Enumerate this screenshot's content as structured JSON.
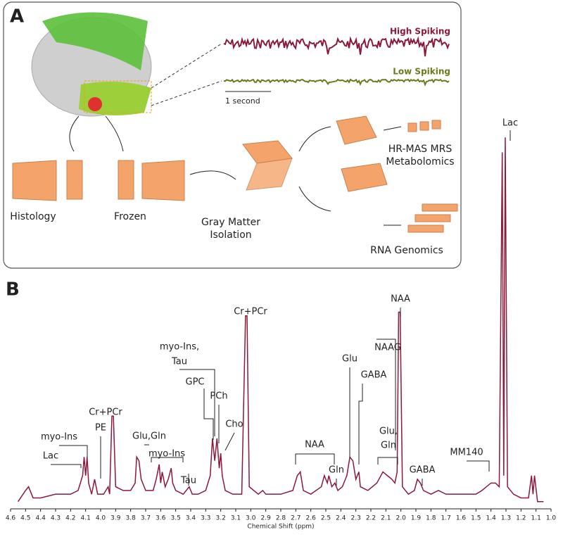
{
  "panel_a": {
    "label": "A",
    "high": "High Spiking",
    "low": "Low Spiking",
    "scale": "1 second",
    "histology": "Histology",
    "frozen": "Frozen",
    "gray": [
      "Gray Matter",
      "Isolation"
    ],
    "mrs": [
      "HR-MAS MRS",
      "Metabolomics"
    ],
    "rna": "RNA Genomics"
  },
  "chart_data": {
    "type": "line",
    "panel_label": "B",
    "x_label": "Chemical Shift (ppm)",
    "xlim": [
      4.6,
      1.0
    ],
    "xticks": [
      4.6,
      4.5,
      4.4,
      4.3,
      4.2,
      4.1,
      {
        "value": 4,
        "label": "4.0"
      },
      3.9,
      3.8,
      3.7,
      3.6,
      3.5,
      3.4,
      3.3,
      3.2,
      3.1,
      {
        "value": 3,
        "label": "3.0"
      },
      2.9,
      2.8,
      2.7,
      2.6,
      2.5,
      2.4,
      2.3,
      2.2,
      2.1,
      {
        "value": 2,
        "label": "2.0"
      },
      1.9,
      1.8,
      1.7,
      1.6,
      1.5,
      1.4,
      1.3,
      1.2,
      1.1,
      {
        "value": 1,
        "label": "1.0"
      }
    ],
    "ylim": [
      0,
      100
    ],
    "series": [
      {
        "color": "#8b1a3a",
        "x": [
          4.55,
          4.5,
          4.48,
          4.45,
          4.4,
          4.3,
          4.2,
          4.15,
          4.12,
          4.11,
          4.1,
          4.09,
          4.08,
          4.06,
          4.04,
          4.02,
          3.98,
          3.95,
          3.94,
          3.925,
          3.915,
          3.9,
          3.85,
          3.8,
          3.77,
          3.76,
          3.745,
          3.73,
          3.7,
          3.65,
          3.63,
          3.61,
          3.6,
          3.59,
          3.57,
          3.55,
          3.53,
          3.52,
          3.5,
          3.45,
          3.41,
          3.39,
          3.35,
          3.3,
          3.27,
          3.255,
          3.24,
          3.225,
          3.21,
          3.2,
          3.19,
          3.17,
          3.12,
          3.06,
          3.035,
          3.025,
          3.01,
          2.95,
          2.92,
          2.9,
          2.8,
          2.72,
          2.69,
          2.67,
          2.65,
          2.6,
          2.53,
          2.51,
          2.49,
          2.48,
          2.46,
          2.44,
          2.42,
          2.39,
          2.36,
          2.34,
          2.32,
          2.3,
          2.28,
          2.27,
          2.22,
          2.16,
          2.12,
          2.09,
          2.06,
          2.04,
          2.025,
          2.015,
          2.005,
          1.99,
          1.95,
          1.91,
          1.89,
          1.87,
          1.85,
          1.8,
          1.75,
          1.7,
          1.6,
          1.5,
          1.46,
          1.43,
          1.4,
          1.37,
          1.345,
          1.325,
          1.315,
          1.305,
          1.29,
          1.25,
          1.2,
          1.15,
          1.13,
          1.12,
          1.11,
          1.09,
          1.05
        ],
        "values": [
          1,
          4,
          5,
          2,
          2,
          3,
          3,
          4,
          8,
          13,
          8,
          13,
          6,
          3,
          7,
          3,
          3,
          5,
          3,
          24,
          24,
          5,
          4,
          4,
          6,
          13,
          12,
          7,
          4,
          4,
          7,
          11,
          6,
          9,
          5,
          7,
          10,
          6,
          4,
          3,
          5,
          3,
          3,
          4,
          8,
          18,
          12,
          18,
          10,
          14,
          8,
          4,
          3,
          3,
          51,
          51,
          5,
          3,
          4,
          3,
          3,
          4,
          8,
          9,
          4,
          3,
          5,
          8,
          6,
          8,
          5,
          6,
          4,
          5,
          8,
          13,
          12,
          7,
          9,
          5,
          4,
          6,
          9,
          8,
          7,
          6,
          9,
          52,
          52,
          5,
          3,
          4,
          7,
          6,
          4,
          3,
          4,
          3,
          3,
          3,
          4,
          5,
          6,
          6,
          5,
          95,
          8,
          99,
          5,
          3,
          2,
          2,
          8,
          3,
          8,
          1,
          1
        ]
      }
    ],
    "annotations": [
      "Lac",
      "NAA",
      "NAAG",
      "Glu",
      "GABA",
      "Cr+PCr",
      "myo-Ins,",
      "Tau",
      "GPC",
      "PCh",
      "Cho",
      "Cr+PCr",
      "PE",
      "Glu,Gln",
      "myo-Ins",
      "myo-Ins",
      "Lac",
      "Tau",
      "NAA",
      "Gln",
      "Glu,",
      "Gln",
      "GABA",
      "MM140"
    ]
  }
}
